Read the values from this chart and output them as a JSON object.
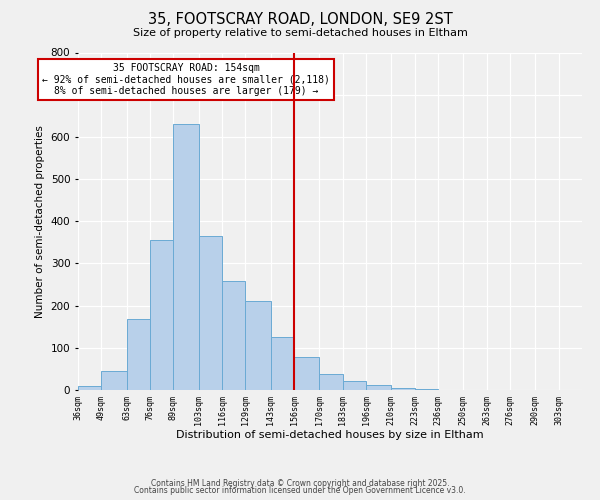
{
  "title": "35, FOOTSCRAY ROAD, LONDON, SE9 2ST",
  "subtitle": "Size of property relative to semi-detached houses in Eltham",
  "xlabel": "Distribution of semi-detached houses by size in Eltham",
  "ylabel": "Number of semi-detached properties",
  "bin_labels": [
    "36sqm",
    "49sqm",
    "63sqm",
    "76sqm",
    "89sqm",
    "103sqm",
    "116sqm",
    "129sqm",
    "143sqm",
    "156sqm",
    "170sqm",
    "183sqm",
    "196sqm",
    "210sqm",
    "223sqm",
    "236sqm",
    "250sqm",
    "263sqm",
    "276sqm",
    "290sqm",
    "303sqm"
  ],
  "bar_heights": [
    10,
    45,
    168,
    355,
    630,
    365,
    258,
    210,
    125,
    78,
    37,
    22,
    13,
    5,
    2,
    1,
    0,
    0,
    0,
    0,
    0
  ],
  "bar_color": "#b8d0ea",
  "bar_edge_color": "#6aaad4",
  "vline_x_idx": 9,
  "vline_color": "#cc0000",
  "annotation_text": "35 FOOTSCRAY ROAD: 154sqm\n← 92% of semi-detached houses are smaller (2,118)\n8% of semi-detached houses are larger (179) →",
  "annotation_box_color": "#ffffff",
  "annotation_box_edge": "#cc0000",
  "ylim": [
    0,
    800
  ],
  "yticks": [
    0,
    100,
    200,
    300,
    400,
    500,
    600,
    700,
    800
  ],
  "footer1": "Contains HM Land Registry data © Crown copyright and database right 2025.",
  "footer2": "Contains public sector information licensed under the Open Government Licence v3.0.",
  "background_color": "#f0f0f0",
  "grid_color": "#ffffff",
  "bin_edges": [
    36,
    49,
    63,
    76,
    89,
    103,
    116,
    129,
    143,
    156,
    170,
    183,
    196,
    210,
    223,
    236,
    250,
    263,
    276,
    290,
    303,
    316
  ]
}
